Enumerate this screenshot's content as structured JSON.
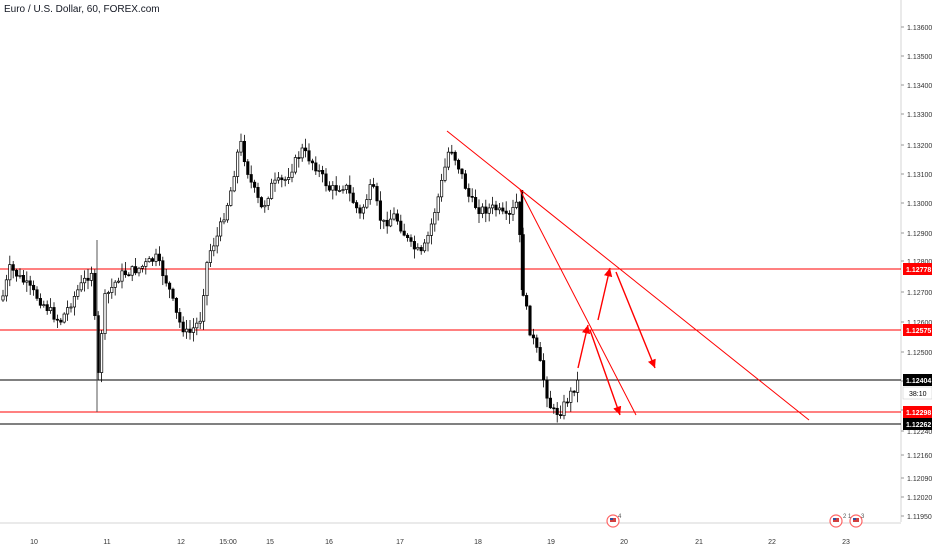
{
  "header": {
    "title": "Euro / U.S. Dollar, 60, FOREX.com"
  },
  "colors": {
    "candle": "#000000",
    "level_line": "#ff0000",
    "price_line": "#000000",
    "annotation": "#ff0000",
    "badge_red": "#ff0000",
    "badge_black": "#000000",
    "axis_text": "#333333"
  },
  "chart_data": {
    "type": "line",
    "subtype": "candlestick",
    "title": "Euro / U.S. Dollar, 60, FOREX.com",
    "x_tick_labels": [
      "10",
      "11",
      "12",
      "15:00",
      "15",
      "16",
      "17",
      "18",
      "19",
      "20",
      "21",
      "22",
      "23"
    ],
    "y_tick_labels": [
      "1.13600",
      "1.13500",
      "1.13400",
      "1.13300",
      "1.13200",
      "1.13100",
      "1.13000",
      "1.12900",
      "1.12800",
      "1.12700",
      "1.12600",
      "1.12500",
      "1.12400",
      "1.12300",
      "1.12240",
      "1.12160",
      "1.12090",
      "1.12020",
      "1.11950"
    ],
    "ylim": [
      1.119,
      1.137
    ],
    "grid": false,
    "series": [
      {
        "ohlc_close_path": [
          {
            "x": "10",
            "y": 1.1262
          },
          {
            "x": "10",
            "y": 1.1275
          },
          {
            "x": "10",
            "y": 1.1268
          },
          {
            "x": "11",
            "y": 1.1258
          },
          {
            "x": "11",
            "y": 1.1242
          },
          {
            "x": "11",
            "y": 1.127
          },
          {
            "x": "12",
            "y": 1.1278
          },
          {
            "x": "12",
            "y": 1.1262
          },
          {
            "x": "12",
            "y": 1.1256
          },
          {
            "x": "15:00",
            "y": 1.129
          },
          {
            "x": "15:00",
            "y": 1.1316
          },
          {
            "x": "15",
            "y": 1.13
          },
          {
            "x": "15",
            "y": 1.1312
          },
          {
            "x": "15",
            "y": 1.1306
          },
          {
            "x": "16",
            "y": 1.1312
          },
          {
            "x": "16",
            "y": 1.13
          },
          {
            "x": "16",
            "y": 1.131
          },
          {
            "x": "17",
            "y": 1.129
          },
          {
            "x": "17",
            "y": 1.1282
          },
          {
            "x": "17",
            "y": 1.1305
          },
          {
            "x": "18",
            "y": 1.1316
          },
          {
            "x": "18",
            "y": 1.13
          },
          {
            "x": "18",
            "y": 1.1294
          },
          {
            "x": "19",
            "y": 1.1303
          },
          {
            "x": "19",
            "y": 1.126
          },
          {
            "x": "19",
            "y": 1.123
          },
          {
            "x": "19",
            "y": 1.1228
          },
          {
            "x": "19",
            "y": 1.124
          }
        ]
      }
    ],
    "levels": [
      {
        "value": 1.12778,
        "label": "1.12778",
        "color": "red"
      },
      {
        "value": 1.12575,
        "label": "1.12575",
        "color": "red"
      },
      {
        "value": 1.12404,
        "label": "1.12404",
        "color": "black"
      },
      {
        "value": 1.12298,
        "label": "1.12298",
        "color": "red"
      },
      {
        "value": 1.12262,
        "label": "1.12262",
        "color": "black"
      }
    ],
    "countdown": "38:10",
    "event_badges": [
      "4",
      "2",
      "1",
      "3"
    ]
  }
}
